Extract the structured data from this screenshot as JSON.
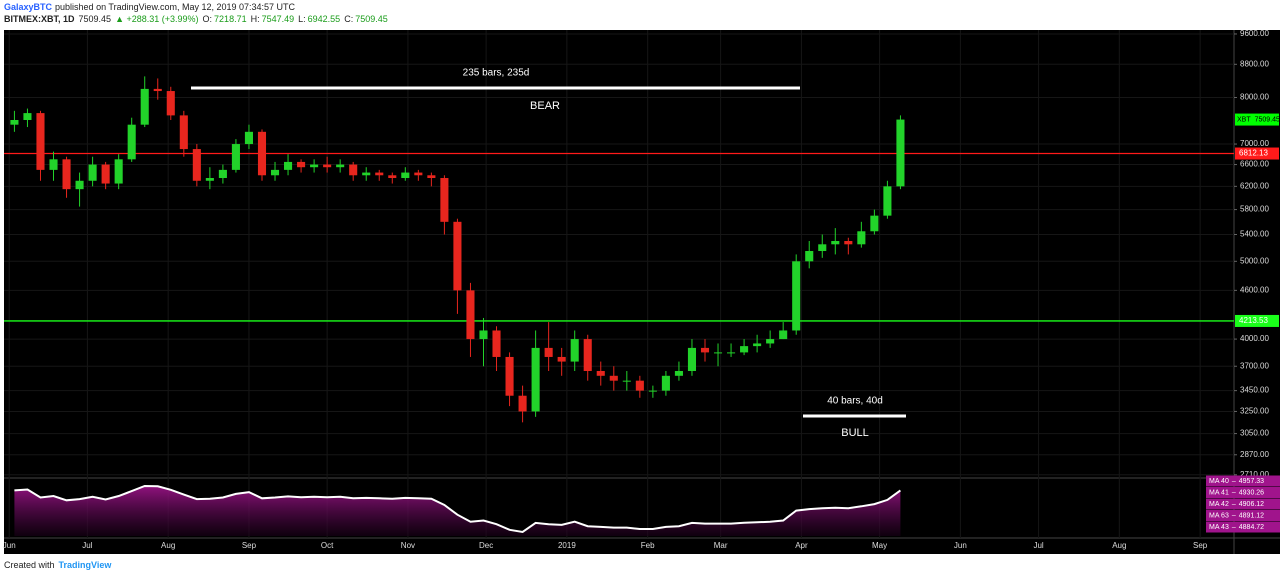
{
  "header": {
    "author": "GalaxyBTC",
    "published": "published on TradingView.com, May 12, 2019 07:34:57 UTC",
    "symbol": "BITMEX:XBT, 1D",
    "last": "7509.45",
    "change": "▲ +288.31 (+3.99%)",
    "open_label": "O:",
    "open": "7218.71",
    "high_label": "H:",
    "high": "7547.49",
    "low_label": "L:",
    "low": "6942.55",
    "close_label": "C:",
    "close": "7509.45"
  },
  "footer": {
    "text": "Created with",
    "brand": "TradingView"
  },
  "chart_data": {
    "type": "candlestick",
    "log_scale": true,
    "grid": true,
    "grid_color": "#161616",
    "up_color": "#22d32a",
    "down_color": "#e8261e",
    "x": [
      2,
      7,
      12,
      17,
      22,
      27,
      32,
      37,
      42,
      47,
      52,
      57,
      62,
      67,
      72,
      77,
      82,
      87,
      92,
      97,
      102,
      107,
      112,
      117,
      122,
      127,
      132,
      137,
      142,
      147,
      152,
      157,
      162,
      167,
      172,
      177,
      182,
      187,
      192,
      197,
      202,
      207,
      212,
      217,
      222,
      227,
      232,
      237,
      242,
      247,
      252,
      257,
      262,
      267,
      272,
      277,
      282,
      287,
      292,
      297,
      302,
      307,
      312,
      317,
      322,
      327,
      332,
      337,
      342
    ],
    "open": [
      7400,
      7500,
      7650,
      6500,
      6700,
      6150,
      6300,
      6600,
      6250,
      6700,
      7400,
      8200,
      8150,
      7600,
      6900,
      6300,
      6350,
      6500,
      7000,
      7250,
      6400,
      6500,
      6650,
      6550,
      6600,
      6550,
      6600,
      6400,
      6450,
      6400,
      6350,
      6450,
      6400,
      6350,
      5600,
      4600,
      4000,
      4100,
      3800,
      3400,
      3250,
      3900,
      3800,
      3750,
      4000,
      3650,
      3600,
      3550,
      3550,
      3450,
      3450,
      3600,
      3650,
      3900,
      3850,
      3850,
      3850,
      3920,
      3950,
      4000,
      4100,
      5000,
      5150,
      5250,
      5300,
      5250,
      5450,
      5700,
      6200
    ],
    "high": [
      7700,
      7750,
      7700,
      6850,
      6750,
      6450,
      6750,
      6650,
      6800,
      7550,
      8500,
      8450,
      8250,
      7700,
      7000,
      6550,
      6600,
      7100,
      7400,
      7300,
      6650,
      6800,
      6700,
      6700,
      6750,
      6700,
      6650,
      6550,
      6500,
      6450,
      6550,
      6500,
      6450,
      6400,
      5650,
      4700,
      4250,
      4150,
      3850,
      3500,
      4100,
      4200,
      3900,
      4100,
      4050,
      3750,
      3700,
      3650,
      3600,
      3500,
      3650,
      3750,
      4000,
      4000,
      3950,
      3950,
      4000,
      4050,
      4100,
      4200,
      5100,
      5300,
      5400,
      5500,
      5350,
      5600,
      5800,
      6300,
      7600
    ],
    "low": [
      7250,
      7350,
      6300,
      6300,
      6000,
      5850,
      6200,
      6150,
      6150,
      6650,
      7350,
      7950,
      7500,
      6750,
      6200,
      6150,
      6250,
      6450,
      6900,
      6300,
      6300,
      6400,
      6450,
      6450,
      6450,
      6450,
      6300,
      6300,
      6300,
      6250,
      6300,
      6300,
      6200,
      5400,
      4300,
      3800,
      3700,
      3650,
      3300,
      3150,
      3200,
      3650,
      3600,
      3650,
      3550,
      3500,
      3450,
      3450,
      3380,
      3380,
      3400,
      3550,
      3600,
      3750,
      3700,
      3800,
      3820,
      3850,
      3900,
      4000,
      4050,
      4900,
      5050,
      5100,
      5100,
      5200,
      5400,
      5650,
      6150
    ],
    "close": [
      7500,
      7650,
      6500,
      6700,
      6150,
      6300,
      6600,
      6250,
      6700,
      7400,
      8200,
      8150,
      7600,
      6900,
      6300,
      6350,
      6500,
      7000,
      7250,
      6400,
      6500,
      6650,
      6550,
      6600,
      6550,
      6600,
      6400,
      6450,
      6400,
      6350,
      6450,
      6400,
      6350,
      5600,
      4600,
      4000,
      4100,
      3800,
      3400,
      3250,
      3900,
      3800,
      3750,
      4000,
      3650,
      3600,
      3550,
      3550,
      3450,
      3450,
      3600,
      3650,
      3900,
      3850,
      3850,
      3850,
      3920,
      3950,
      4000,
      4100,
      5000,
      5150,
      5250,
      5300,
      5250,
      5450,
      5700,
      6200,
      7509.45
    ],
    "xlim": [
      -2,
      470
    ],
    "xticks": [
      {
        "value": 0,
        "label": "Jun"
      },
      {
        "value": 30,
        "label": "Jul"
      },
      {
        "value": 61,
        "label": "Aug"
      },
      {
        "value": 92,
        "label": "Sep"
      },
      {
        "value": 122,
        "label": "Oct"
      },
      {
        "value": 153,
        "label": "Nov"
      },
      {
        "value": 183,
        "label": "Dec"
      },
      {
        "value": 214,
        "label": "2019"
      },
      {
        "value": 245,
        "label": "Feb"
      },
      {
        "value": 273,
        "label": "Mar"
      },
      {
        "value": 304,
        "label": "Apr"
      },
      {
        "value": 334,
        "label": "May"
      },
      {
        "value": 365,
        "label": "Jun"
      },
      {
        "value": 395,
        "label": "Jul"
      },
      {
        "value": 426,
        "label": "Aug"
      },
      {
        "value": 457,
        "label": "Sep"
      }
    ],
    "ylim": [
      2685,
      9710
    ],
    "yticks": [
      {
        "value": 9600,
        "label": "9600.00"
      },
      {
        "value": 8800,
        "label": "8800.00"
      },
      {
        "value": 8000,
        "label": "8000.00"
      },
      {
        "value": 7000,
        "label": "7000.00"
      },
      {
        "value": 6600,
        "label": "6600.00"
      },
      {
        "value": 6200,
        "label": "6200.00"
      },
      {
        "value": 5800,
        "label": "5800.00"
      },
      {
        "value": 5400,
        "label": "5400.00"
      },
      {
        "value": 5000,
        "label": "5000.00"
      },
      {
        "value": 4600,
        "label": "4600.00"
      },
      {
        "value": 4000,
        "label": "4000.00"
      },
      {
        "value": 3700,
        "label": "3700.00"
      },
      {
        "value": 3450,
        "label": "3450.00"
      },
      {
        "value": 3250,
        "label": "3250.00"
      },
      {
        "value": 3050,
        "label": "3050.00"
      },
      {
        "value": 2870,
        "label": "2870.00"
      },
      {
        "value": 2710,
        "label": "2710.00"
      }
    ],
    "hlines": [
      {
        "value": 6812.13,
        "color": "#ff1a1a"
      },
      {
        "value": 4213.53,
        "color": "#1aff1a"
      }
    ],
    "price_tag": {
      "symbol": "XBT",
      "value": 7509.45,
      "color": "#00ff00"
    },
    "annotations": [
      {
        "text": "235 bars, 235d"
      },
      {
        "text": "BEAR"
      },
      {
        "text": "40 bars, 40d"
      },
      {
        "text": "BULL"
      }
    ],
    "indicator": {
      "series": [
        {
          "name": "MA 40",
          "value": 4957.33
        },
        {
          "name": "MA 41",
          "value": 4930.26
        },
        {
          "name": "MA 42",
          "value": 4906.12
        },
        {
          "name": "MA 63",
          "value": 4891.12
        },
        {
          "name": "MA 43",
          "value": 4884.72
        }
      ],
      "color": "#a0148c"
    }
  }
}
